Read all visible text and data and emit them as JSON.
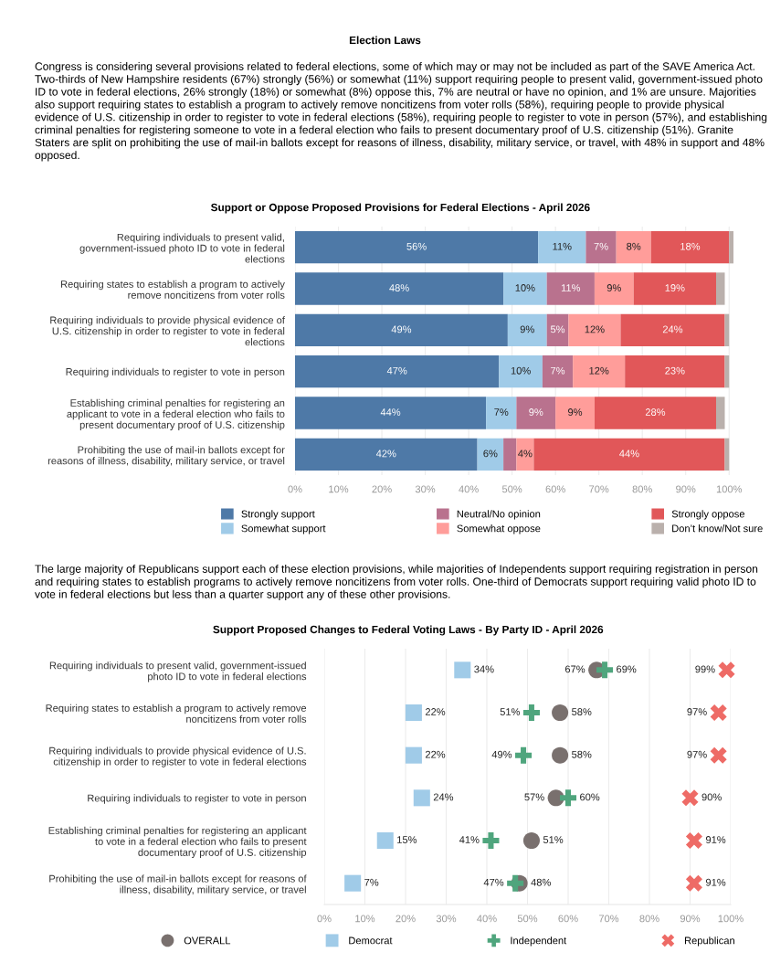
{
  "chart_data": [
    {
      "type": "bar",
      "orientation": "horizontal",
      "stacked": true,
      "title": "Support or Oppose Proposed Provisions for Federal Elections - April 2026",
      "annotations": [
        "Election Laws",
        "Congress is considering several provisions related to federal elections, some of which may or may not be included as part of the SAVE America Act. Two-thirds of New Hampshire residents (67%) strongly (56%) or somewhat (11%) support requiring people to present valid, government-issued photo ID to vote in federal elections, 26% strongly (18%) or somewhat (8%) oppose this, 7% are neutral or have no opinion, and 1% are unsure. Majorities also support requiring states to establish a program to actively remove noncitizens from voter rolls (58%), requiring people to provide physical evidence of U.S. citizenship in order to register to vote in federal elections (58%), requiring people to register to vote in person (57%), and establishing criminal penalties for registering someone to vote in a federal election who fails to present documentary proof of U.S. citizenship (51%). Granite Staters are split on prohibiting the use of mail-in ballots except for reasons of illness, disability, military service, or travel, with 48% in support and 48% opposed."
      ],
      "categories": [
        "Requiring individuals to present valid,\ngovernment-issued photo ID to vote in federal\nelections",
        "Requiring states to establish a program to actively\nremove noncitizens from voter rolls",
        "Requiring individuals to provide physical evidence of\nU.S. citizenship in order to register to vote in federal\nelections",
        "Requiring individuals to register to vote in person",
        "Establishing criminal penalties for registering an\napplicant to vote in a federal election who fails to\npresent documentary proof of U.S. citizenship",
        "Prohibiting the use of mail-in ballots except for\nreasons of illness, disability, military service, or travel"
      ],
      "series": [
        {
          "name": "Strongly support",
          "color": "#4e79a7",
          "values": [
            56,
            48,
            49,
            47,
            44,
            42
          ],
          "value_labels": [
            "56%",
            "48%",
            "49%",
            "47%",
            "44%",
            "42%"
          ]
        },
        {
          "name": "Somewhat support",
          "color": "#a0cbe8",
          "values": [
            11,
            10,
            9,
            10,
            7,
            6
          ],
          "value_labels": [
            "11%",
            "10%",
            "9%",
            "10%",
            "7%",
            "6%"
          ]
        },
        {
          "name": "Neutral/No opinion",
          "color": "#b9728e",
          "values": [
            7,
            11,
            5,
            7,
            9,
            3
          ],
          "value_labels": [
            "7%",
            "11%",
            "5%",
            "7%",
            "9%",
            null
          ]
        },
        {
          "name": "Somewhat oppose",
          "color": "#ff9d9a",
          "values": [
            8,
            9,
            12,
            12,
            9,
            4
          ],
          "value_labels": [
            "8%",
            "9%",
            "12%",
            "12%",
            "9%",
            "4%"
          ]
        },
        {
          "name": "Strongly oppose",
          "color": "#e15759",
          "values": [
            18,
            19,
            24,
            23,
            28,
            44
          ],
          "value_labels": [
            "18%",
            "19%",
            "24%",
            "23%",
            "28%",
            "44%"
          ]
        },
        {
          "name": "Don’t know/Not sure",
          "color": "#bab0ac",
          "values": [
            1,
            2,
            1,
            1,
            2,
            1
          ],
          "value_labels": [
            null,
            null,
            null,
            null,
            null,
            null
          ]
        }
      ],
      "xlim": [
        0,
        101
      ],
      "xticks": [
        {
          "value": 0,
          "label": "0%"
        },
        {
          "value": 10,
          "label": "10%"
        },
        {
          "value": 20,
          "label": "20%"
        },
        {
          "value": 30,
          "label": "30%"
        },
        {
          "value": 40,
          "label": "40%"
        },
        {
          "value": 50,
          "label": "50%"
        },
        {
          "value": 60,
          "label": "60%"
        },
        {
          "value": 70,
          "label": "70%"
        },
        {
          "value": 80,
          "label": "80%"
        },
        {
          "value": 90,
          "label": "90%"
        },
        {
          "value": 100,
          "label": "100%"
        }
      ],
      "grid": "x",
      "legend": "bottom"
    },
    {
      "type": "scatter",
      "orientation": "horizontal",
      "title": "Support Proposed Changes to Federal Voting Laws - By Party ID - April 2026",
      "annotations": [
        "The large majority of Republicans support each of these election provisions, while majorities of Independents support requiring registration in person and requiring states to establish programs to actively remove noncitizens from voter rolls. One-third of Democrats support requiring valid photo ID to vote in federal elections but less than a quarter support any of these other provisions."
      ],
      "categories": [
        "Requiring individuals to present valid, government-issued\nphoto ID to vote in federal elections",
        "Requiring states to establish a program to actively remove\nnoncitizens from voter rolls",
        "Requiring individuals to provide physical evidence of U.S.\ncitizenship in order to register to vote in federal elections",
        "Requiring individuals to register to vote in person",
        "Establishing criminal penalties for registering an applicant\nto vote in a federal election who fails to present\ndocumentary proof of U.S. citizenship",
        "Prohibiting the use of mail-in ballots except for reasons of\nillness, disability, military service, or travel"
      ],
      "series": [
        {
          "name": "OVERALL",
          "color": "#79706e",
          "marker": "circle",
          "values": [
            67,
            58,
            58,
            57,
            51,
            48
          ],
          "value_labels": [
            "67%",
            "58%",
            "58%",
            "57%",
            "51%",
            "48%"
          ]
        },
        {
          "name": "Democrat",
          "color": "#a0cbe8",
          "marker": "square",
          "values": [
            34,
            22,
            22,
            24,
            15,
            7
          ],
          "value_labels": [
            "34%",
            "22%",
            "22%",
            "24%",
            "15%",
            "7%"
          ]
        },
        {
          "name": "Independent",
          "color": "#4fa57d",
          "marker": "plus",
          "values": [
            69,
            51,
            49,
            60,
            41,
            47
          ],
          "value_labels": [
            "69%",
            "51%",
            "49%",
            "60%",
            "41%",
            "47%"
          ]
        },
        {
          "name": "Republican",
          "color": "#ee6b66",
          "marker": "cross",
          "values": [
            99,
            97,
            97,
            90,
            91,
            91
          ],
          "value_labels": [
            "99%",
            "97%",
            "97%",
            "90%",
            "91%",
            "91%"
          ]
        }
      ],
      "xlim": [
        0,
        100
      ],
      "xticks": [
        {
          "value": 0,
          "label": "0%"
        },
        {
          "value": 10,
          "label": "10%"
        },
        {
          "value": 20,
          "label": "20%"
        },
        {
          "value": 30,
          "label": "30%"
        },
        {
          "value": 40,
          "label": "40%"
        },
        {
          "value": 50,
          "label": "50%"
        },
        {
          "value": 60,
          "label": "60%"
        },
        {
          "value": 70,
          "label": "70%"
        },
        {
          "value": 80,
          "label": "80%"
        },
        {
          "value": 90,
          "label": "90%"
        },
        {
          "value": 100,
          "label": "100%"
        }
      ],
      "grid": "x",
      "legend": "bottom"
    }
  ]
}
